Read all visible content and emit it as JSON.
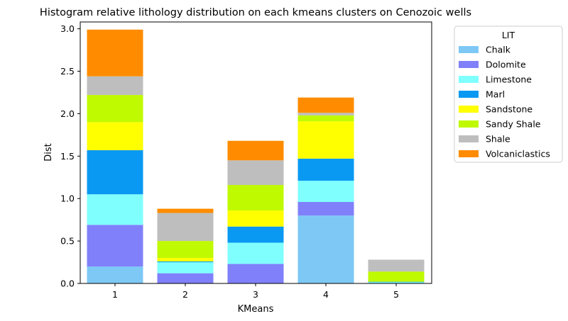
{
  "chart_data": {
    "type": "bar",
    "stacked": true,
    "title": "Histogram relative lithology distribution on each kmeans clusters on Cenozoic wells",
    "xlabel": "KMeans",
    "ylabel": "Dist",
    "categories": [
      "1",
      "2",
      "3",
      "4",
      "5"
    ],
    "ylim": [
      0,
      3.08
    ],
    "yticks": [
      "0.0",
      "0.5",
      "1.0",
      "1.5",
      "2.0",
      "2.5",
      "3.0"
    ],
    "grid": false,
    "legend_title": "LIT",
    "legend_position": "outside upper right",
    "series": [
      {
        "name": "Chalk",
        "color": "#7ec8f5",
        "values": [
          0.2,
          0.0,
          0.0,
          0.8,
          0.0
        ]
      },
      {
        "name": "Dolomite",
        "color": "#8080fb",
        "values": [
          0.49,
          0.12,
          0.23,
          0.16,
          0.0
        ]
      },
      {
        "name": "Limestone",
        "color": "#80ffff",
        "values": [
          0.36,
          0.13,
          0.25,
          0.25,
          0.015
        ]
      },
      {
        "name": "Marl",
        "color": "#0a99f2",
        "values": [
          0.52,
          0.01,
          0.19,
          0.26,
          0.005
        ]
      },
      {
        "name": "Sandstone",
        "color": "#ffff00",
        "values": [
          0.33,
          0.04,
          0.19,
          0.44,
          0.0
        ]
      },
      {
        "name": "Sandy Shale",
        "color": "#c0fa00",
        "values": [
          0.32,
          0.2,
          0.3,
          0.07,
          0.12
        ]
      },
      {
        "name": "Shale",
        "color": "#bebebe",
        "values": [
          0.22,
          0.33,
          0.29,
          0.03,
          0.14
        ]
      },
      {
        "name": "Volcaniclastics",
        "color": "#ff8c00",
        "values": [
          0.55,
          0.05,
          0.23,
          0.18,
          0.0
        ]
      }
    ]
  }
}
